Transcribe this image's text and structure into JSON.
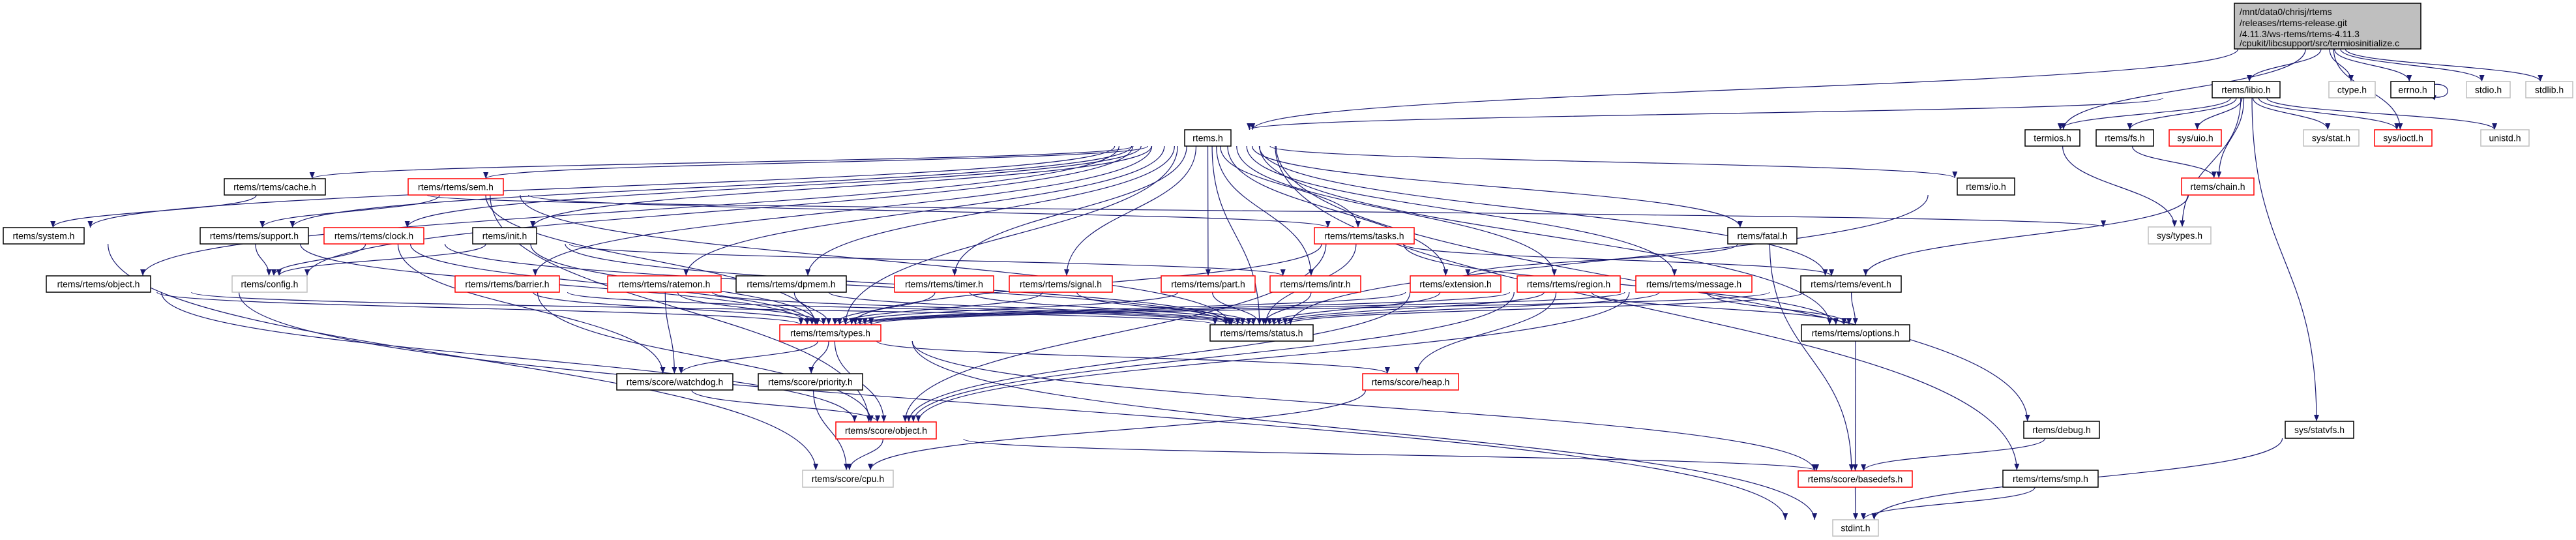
{
  "colors": {
    "edge": "#191970",
    "documented_border": "#000000",
    "truncated_border": "#ff0000",
    "undocumented_border": "#bfbfbf",
    "root_fill": "#bfbfbf"
  },
  "root": {
    "id": "main",
    "lines": [
      "/mnt/data0/chrisj/rtems",
      "/releases/rtems-release.git",
      "/4.11.3/ws-rtems/rtems-4.11.3",
      "/cpukit/libcsupport/src/termiosinitialize.c"
    ]
  },
  "nodes": [
    {
      "id": "libio",
      "label": "rtems/libio.h",
      "kind": "documented"
    },
    {
      "id": "ctype",
      "label": "ctype.h",
      "kind": "undocumented"
    },
    {
      "id": "errno",
      "label": "errno.h",
      "kind": "documented"
    },
    {
      "id": "stdio",
      "label": "stdio.h",
      "kind": "undocumented"
    },
    {
      "id": "stdlib",
      "label": "stdlib.h",
      "kind": "undocumented"
    },
    {
      "id": "rtems",
      "label": "rtems.h",
      "kind": "documented"
    },
    {
      "id": "termios",
      "label": "termios.h",
      "kind": "documented"
    },
    {
      "id": "fs",
      "label": "rtems/fs.h",
      "kind": "documented"
    },
    {
      "id": "uio",
      "label": "sys/uio.h",
      "kind": "truncated"
    },
    {
      "id": "stat",
      "label": "sys/stat.h",
      "kind": "undocumented"
    },
    {
      "id": "ioctl",
      "label": "sys/ioctl.h",
      "kind": "truncated"
    },
    {
      "id": "unistd",
      "label": "unistd.h",
      "kind": "undocumented"
    },
    {
      "id": "io",
      "label": "rtems/io.h",
      "kind": "documented"
    },
    {
      "id": "chain",
      "label": "rtems/chain.h",
      "kind": "truncated"
    },
    {
      "id": "systypes",
      "label": "sys/types.h",
      "kind": "undocumented"
    },
    {
      "id": "cache",
      "label": "rtems/rtems/cache.h",
      "kind": "documented"
    },
    {
      "id": "sem",
      "label": "rtems/rtems/sem.h",
      "kind": "truncated"
    },
    {
      "id": "system",
      "label": "rtems/system.h",
      "kind": "documented"
    },
    {
      "id": "support",
      "label": "rtems/rtems/support.h",
      "kind": "documented"
    },
    {
      "id": "clock",
      "label": "rtems/rtems/clock.h",
      "kind": "truncated"
    },
    {
      "id": "init",
      "label": "rtems/init.h",
      "kind": "documented"
    },
    {
      "id": "tasks",
      "label": "rtems/rtems/tasks.h",
      "kind": "truncated"
    },
    {
      "id": "fatal",
      "label": "rtems/fatal.h",
      "kind": "documented"
    },
    {
      "id": "robject",
      "label": "rtems/rtems/object.h",
      "kind": "documented"
    },
    {
      "id": "config",
      "label": "rtems/config.h",
      "kind": "undocumented"
    },
    {
      "id": "barrier",
      "label": "rtems/rtems/barrier.h",
      "kind": "truncated"
    },
    {
      "id": "ratemon",
      "label": "rtems/rtems/ratemon.h",
      "kind": "truncated"
    },
    {
      "id": "dpmem",
      "label": "rtems/rtems/dpmem.h",
      "kind": "documented"
    },
    {
      "id": "timer",
      "label": "rtems/rtems/timer.h",
      "kind": "truncated"
    },
    {
      "id": "signal",
      "label": "rtems/rtems/signal.h",
      "kind": "truncated"
    },
    {
      "id": "part",
      "label": "rtems/rtems/part.h",
      "kind": "truncated"
    },
    {
      "id": "intr",
      "label": "rtems/rtems/intr.h",
      "kind": "truncated"
    },
    {
      "id": "extension",
      "label": "rtems/extension.h",
      "kind": "truncated"
    },
    {
      "id": "region",
      "label": "rtems/rtems/region.h",
      "kind": "truncated"
    },
    {
      "id": "message",
      "label": "rtems/rtems/message.h",
      "kind": "truncated"
    },
    {
      "id": "event",
      "label": "rtems/rtems/event.h",
      "kind": "documented"
    },
    {
      "id": "types",
      "label": "rtems/rtems/types.h",
      "kind": "truncated"
    },
    {
      "id": "status",
      "label": "rtems/rtems/status.h",
      "kind": "documented"
    },
    {
      "id": "options",
      "label": "rtems/rtems/options.h",
      "kind": "documented"
    },
    {
      "id": "watchdog",
      "label": "rtems/score/watchdog.h",
      "kind": "documented"
    },
    {
      "id": "priority",
      "label": "rtems/score/priority.h",
      "kind": "documented"
    },
    {
      "id": "heap",
      "label": "rtems/score/heap.h",
      "kind": "truncated"
    },
    {
      "id": "sobject",
      "label": "rtems/score/object.h",
      "kind": "truncated"
    },
    {
      "id": "debug",
      "label": "rtems/debug.h",
      "kind": "documented"
    },
    {
      "id": "statvfs",
      "label": "sys/statvfs.h",
      "kind": "documented"
    },
    {
      "id": "cpu",
      "label": "rtems/score/cpu.h",
      "kind": "undocumented"
    },
    {
      "id": "basedefs",
      "label": "rtems/score/basedefs.h",
      "kind": "truncated"
    },
    {
      "id": "smp",
      "label": "rtems/rtems/smp.h",
      "kind": "documented"
    },
    {
      "id": "stdint",
      "label": "stdint.h",
      "kind": "undocumented"
    }
  ],
  "edges": [
    [
      "main",
      "rtems"
    ],
    [
      "main",
      "libio"
    ],
    [
      "main",
      "termios"
    ],
    [
      "main",
      "ctype"
    ],
    [
      "main",
      "errno"
    ],
    [
      "main",
      "stdio"
    ],
    [
      "main",
      "stdlib"
    ],
    [
      "main",
      "ioctl"
    ],
    [
      "errno",
      "errno"
    ],
    [
      "libio",
      "rtems"
    ],
    [
      "libio",
      "termios"
    ],
    [
      "libio",
      "fs"
    ],
    [
      "libio",
      "uio"
    ],
    [
      "libio",
      "chain"
    ],
    [
      "libio",
      "systypes"
    ],
    [
      "libio",
      "stat"
    ],
    [
      "libio",
      "ioctl"
    ],
    [
      "libio",
      "unistd"
    ],
    [
      "libio",
      "statvfs"
    ],
    [
      "fs",
      "chain"
    ],
    [
      "termios",
      "systypes"
    ],
    [
      "chain",
      "event"
    ],
    [
      "io",
      "status"
    ],
    [
      "statvfs",
      "stdint"
    ],
    [
      "debug",
      "basedefs"
    ],
    [
      "smp",
      "stdint"
    ],
    [
      "rtems",
      "cache"
    ],
    [
      "rtems",
      "sem"
    ],
    [
      "rtems",
      "system"
    ],
    [
      "rtems",
      "support"
    ],
    [
      "rtems",
      "clock"
    ],
    [
      "rtems",
      "init"
    ],
    [
      "rtems",
      "robject"
    ],
    [
      "rtems",
      "config"
    ],
    [
      "rtems",
      "barrier"
    ],
    [
      "rtems",
      "ratemon"
    ],
    [
      "rtems",
      "dpmem"
    ],
    [
      "rtems",
      "timer"
    ],
    [
      "rtems",
      "signal"
    ],
    [
      "rtems",
      "part"
    ],
    [
      "rtems",
      "intr"
    ],
    [
      "rtems",
      "types"
    ],
    [
      "rtems",
      "status"
    ],
    [
      "rtems",
      "tasks"
    ],
    [
      "rtems",
      "fatal"
    ],
    [
      "rtems",
      "extension"
    ],
    [
      "rtems",
      "region"
    ],
    [
      "rtems",
      "message"
    ],
    [
      "rtems",
      "event"
    ],
    [
      "rtems",
      "options"
    ],
    [
      "rtems",
      "io"
    ],
    [
      "rtems",
      "debug"
    ],
    [
      "rtems",
      "smp"
    ],
    [
      "cache",
      "system"
    ],
    [
      "cache",
      "systypes"
    ],
    [
      "sem",
      "support"
    ],
    [
      "sem",
      "sobject"
    ],
    [
      "sem",
      "tasks"
    ],
    [
      "sem",
      "types"
    ],
    [
      "sem",
      "status"
    ],
    [
      "support",
      "config"
    ],
    [
      "support",
      "types"
    ],
    [
      "clock",
      "config"
    ],
    [
      "clock",
      "types"
    ],
    [
      "clock",
      "status"
    ],
    [
      "clock",
      "watchdog"
    ],
    [
      "init",
      "config"
    ],
    [
      "init",
      "types"
    ],
    [
      "init",
      "status"
    ],
    [
      "init",
      "intr"
    ],
    [
      "robject",
      "types"
    ],
    [
      "robject",
      "status"
    ],
    [
      "robject",
      "sobject"
    ],
    [
      "robject",
      "stdint"
    ],
    [
      "system",
      "cpu"
    ],
    [
      "barrier",
      "types"
    ],
    [
      "barrier",
      "status"
    ],
    [
      "barrier",
      "sobject"
    ],
    [
      "ratemon",
      "types"
    ],
    [
      "ratemon",
      "status"
    ],
    [
      "ratemon",
      "watchdog"
    ],
    [
      "dpmem",
      "types"
    ],
    [
      "dpmem",
      "status"
    ],
    [
      "timer",
      "types"
    ],
    [
      "timer",
      "status"
    ],
    [
      "signal",
      "types"
    ],
    [
      "signal",
      "status"
    ],
    [
      "part",
      "types"
    ],
    [
      "part",
      "status"
    ],
    [
      "intr",
      "status"
    ],
    [
      "types",
      "watchdog"
    ],
    [
      "types",
      "priority"
    ],
    [
      "types",
      "sobject"
    ],
    [
      "types",
      "heap"
    ],
    [
      "types",
      "stdint"
    ],
    [
      "types",
      "basedefs"
    ],
    [
      "priority",
      "cpu"
    ],
    [
      "watchdog",
      "sobject"
    ],
    [
      "sobject",
      "cpu"
    ],
    [
      "sobject",
      "basedefs"
    ],
    [
      "tasks",
      "types"
    ],
    [
      "tasks",
      "status"
    ],
    [
      "tasks",
      "event"
    ],
    [
      "tasks",
      "sobject"
    ],
    [
      "tasks",
      "options"
    ],
    [
      "fatal",
      "extension"
    ],
    [
      "fatal",
      "basedefs"
    ],
    [
      "extension",
      "types"
    ],
    [
      "extension",
      "status"
    ],
    [
      "extension",
      "sobject"
    ],
    [
      "region",
      "types"
    ],
    [
      "region",
      "status"
    ],
    [
      "region",
      "heap"
    ],
    [
      "region",
      "options"
    ],
    [
      "region",
      "sobject"
    ],
    [
      "message",
      "types"
    ],
    [
      "message",
      "status"
    ],
    [
      "message",
      "options"
    ],
    [
      "message",
      "sobject"
    ],
    [
      "event",
      "types"
    ],
    [
      "event",
      "status"
    ],
    [
      "event",
      "options"
    ],
    [
      "options",
      "basedefs"
    ],
    [
      "heap",
      "cpu"
    ],
    [
      "basedefs",
      "stdint"
    ]
  ]
}
